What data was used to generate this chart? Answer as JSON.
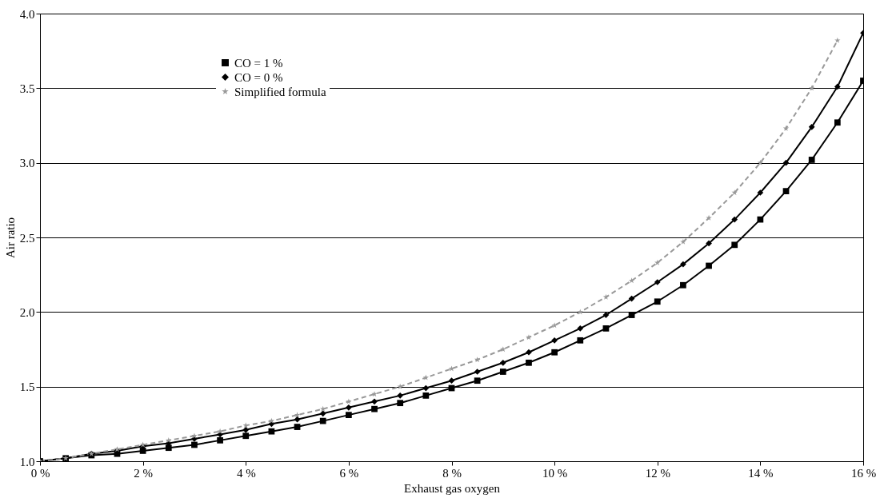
{
  "chart_data": {
    "type": "line",
    "xlabel": "Exhaust gas oxygen",
    "ylabel": "Air ratio",
    "x": [
      0,
      0.5,
      1,
      1.5,
      2,
      2.5,
      3,
      3.5,
      4,
      4.5,
      5,
      5.5,
      6,
      6.5,
      7,
      7.5,
      8,
      8.5,
      9,
      9.5,
      10,
      10.5,
      11,
      11.5,
      12,
      12.5,
      13,
      13.5,
      14,
      14.5,
      15,
      15.5,
      16
    ],
    "series": [
      {
        "name": "CO = 1 %",
        "color": "#000000",
        "marker": "square",
        "line_style": "solid",
        "values": [
          1.0,
          1.02,
          1.04,
          1.05,
          1.07,
          1.09,
          1.11,
          1.14,
          1.17,
          1.2,
          1.23,
          1.27,
          1.31,
          1.35,
          1.39,
          1.44,
          1.49,
          1.54,
          1.6,
          1.66,
          1.73,
          1.81,
          1.89,
          1.98,
          2.07,
          2.18,
          2.31,
          2.45,
          2.62,
          2.81,
          3.02,
          3.27,
          3.55
        ]
      },
      {
        "name": "CO = 0 %",
        "color": "#000000",
        "marker": "diamond",
        "line_style": "solid",
        "values": [
          1.0,
          1.02,
          1.05,
          1.07,
          1.1,
          1.12,
          1.15,
          1.18,
          1.21,
          1.25,
          1.28,
          1.32,
          1.36,
          1.4,
          1.44,
          1.49,
          1.54,
          1.6,
          1.66,
          1.73,
          1.81,
          1.89,
          1.98,
          2.09,
          2.2,
          2.32,
          2.46,
          2.62,
          2.8,
          3.0,
          3.24,
          3.51,
          3.87
        ]
      },
      {
        "name": "Simplified formula",
        "color": "#999999",
        "marker": "star",
        "line_style": "dashed",
        "values": [
          1.0,
          1.02,
          1.05,
          1.08,
          1.11,
          1.14,
          1.17,
          1.2,
          1.24,
          1.27,
          1.31,
          1.35,
          1.4,
          1.45,
          1.5,
          1.56,
          1.62,
          1.68,
          1.75,
          1.83,
          1.91,
          2.0,
          2.1,
          2.21,
          2.33,
          2.47,
          2.63,
          2.8,
          3.0,
          3.23,
          3.5,
          3.82,
          null
        ]
      }
    ],
    "xlim": [
      0,
      16
    ],
    "xticks": [
      {
        "value": 0,
        "label": "0 %"
      },
      {
        "value": 2,
        "label": "2 %"
      },
      {
        "value": 4,
        "label": "4 %"
      },
      {
        "value": 6,
        "label": "6 %"
      },
      {
        "value": 8,
        "label": "8 %"
      },
      {
        "value": 10,
        "label": "10 %"
      },
      {
        "value": 12,
        "label": "12 %"
      },
      {
        "value": 14,
        "label": "14 %"
      },
      {
        "value": 16,
        "label": "16 %"
      }
    ],
    "ylim": [
      1.0,
      4.0
    ],
    "yticks": [
      {
        "value": 1.0,
        "label": "1.0"
      },
      {
        "value": 1.5,
        "label": "1.5"
      },
      {
        "value": 2.0,
        "label": "2.0"
      },
      {
        "value": 2.5,
        "label": "2.5"
      },
      {
        "value": 3.0,
        "label": "3.0"
      },
      {
        "value": 3.5,
        "label": "3.5"
      },
      {
        "value": 4.0,
        "label": "4.0"
      }
    ],
    "grid": "y",
    "legend": "top left"
  }
}
